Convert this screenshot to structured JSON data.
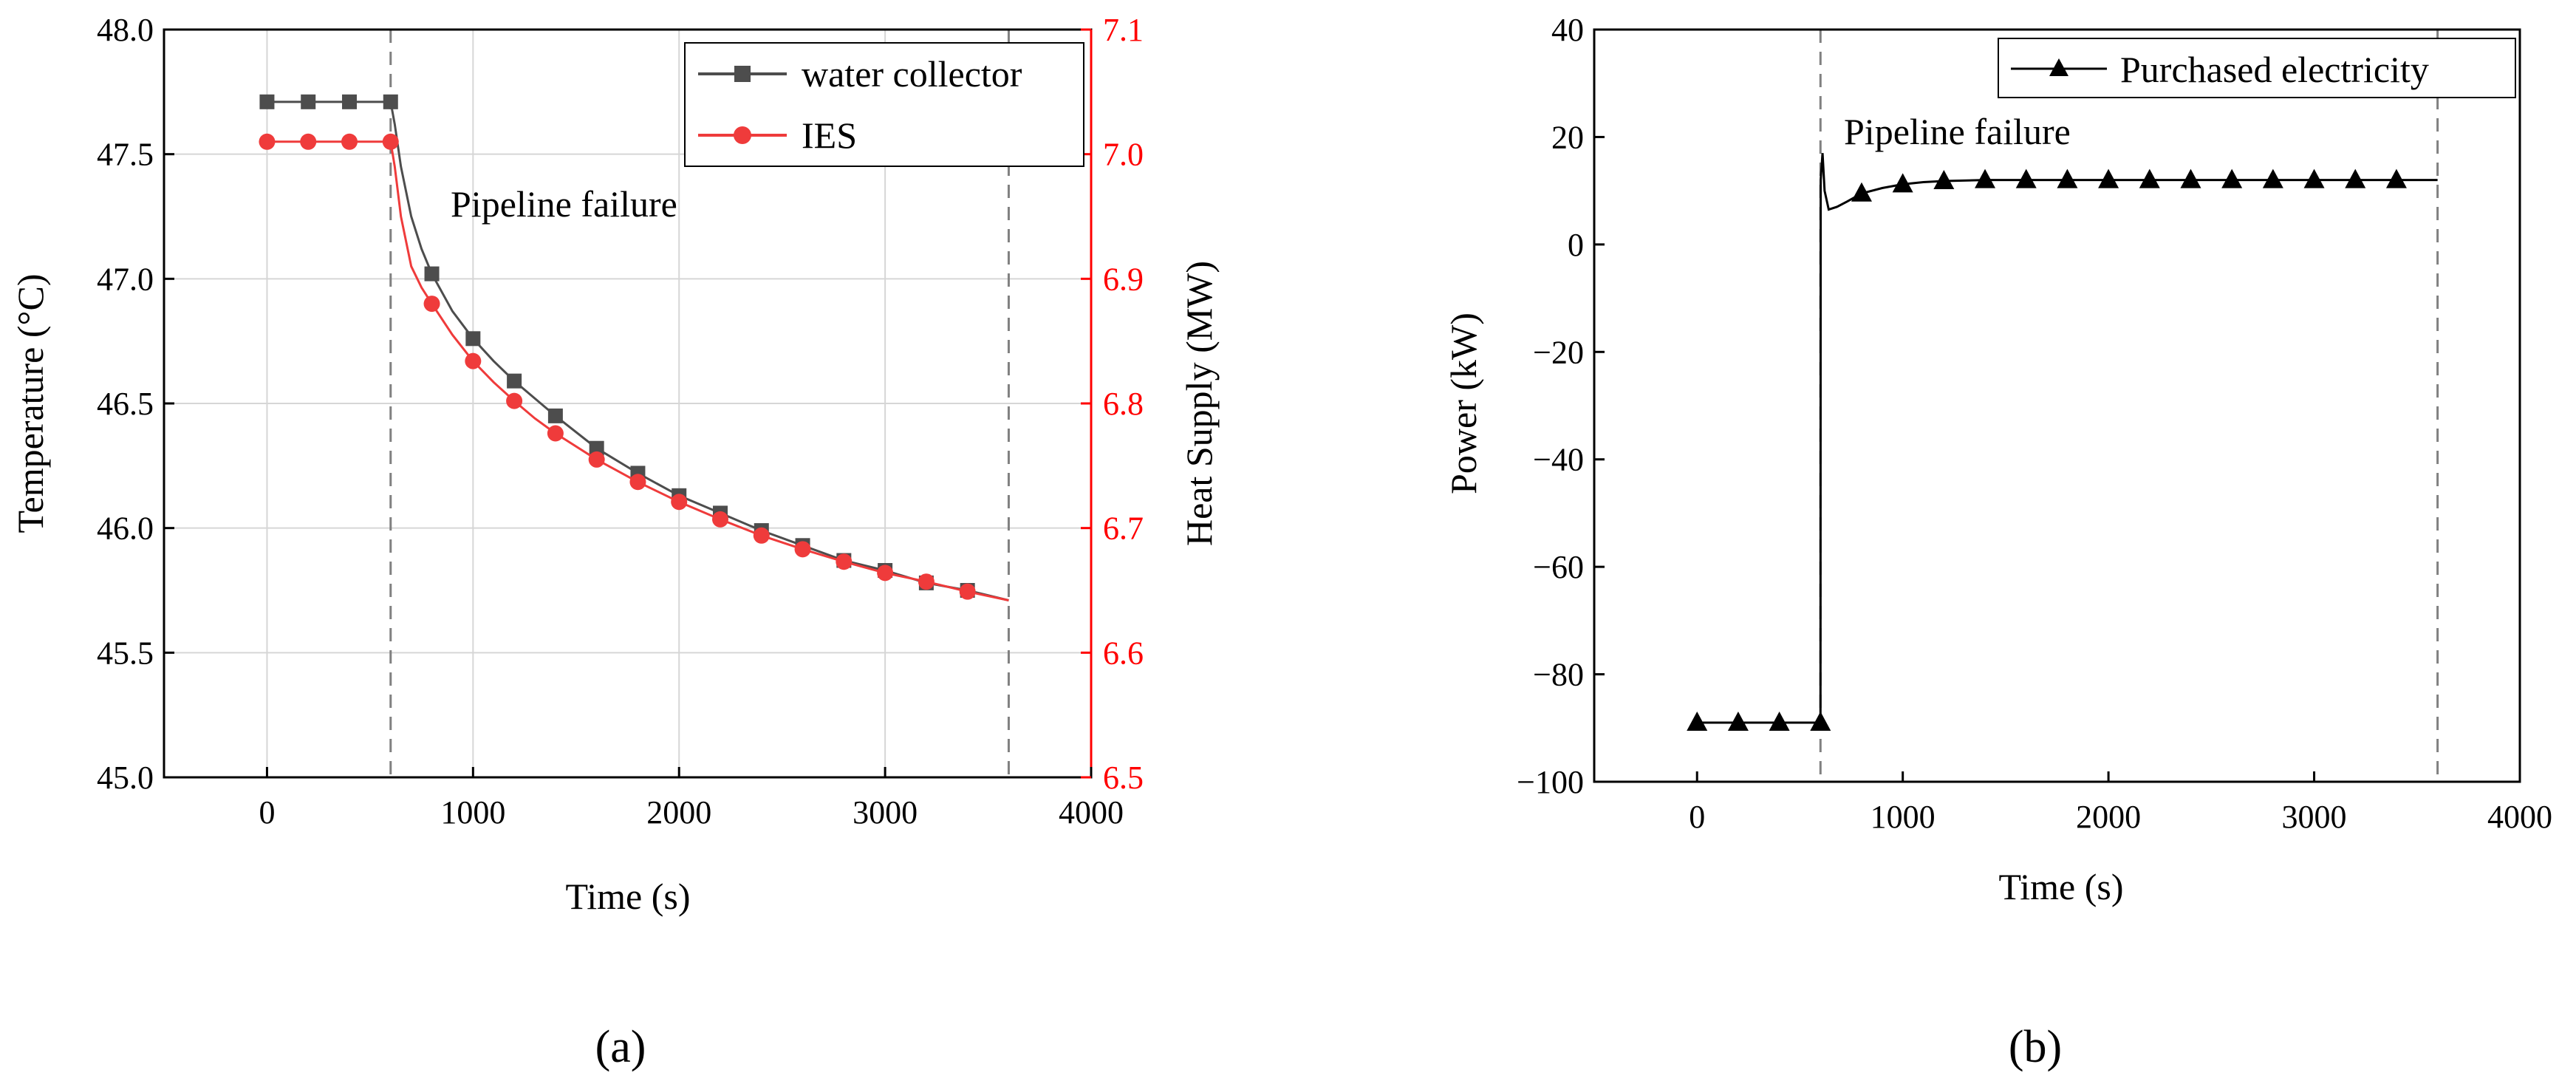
{
  "colors": {
    "black": "#000000",
    "red": "#ff0000",
    "grid": "#d6d6d6",
    "dash": "#808080",
    "series_gray": "#4d4d4d",
    "series_red": "#ef3b3b"
  },
  "chart_data": [
    {
      "type": "line",
      "panel_label": "(a)",
      "title": "",
      "xlabel": "Time (s)",
      "ylabel": "Temperature (°C)",
      "y2label": "Heat Supply (MW)",
      "xlim": [
        -500,
        4000
      ],
      "ylim": [
        45.0,
        48.0
      ],
      "y2lim": [
        6.5,
        7.1
      ],
      "x_ticks": [
        0,
        1000,
        2000,
        3000,
        4000
      ],
      "y_ticks": [
        45.0,
        45.5,
        46.0,
        46.5,
        47.0,
        47.5,
        48.0
      ],
      "y2_ticks": [
        6.5,
        6.6,
        6.7,
        6.8,
        6.9,
        7.0,
        7.1
      ],
      "x_tick_labels": [
        "0",
        "1000",
        "2000",
        "3000",
        "4000"
      ],
      "y_tick_labels": [
        "45.0",
        "45.5",
        "46.0",
        "46.5",
        "47.0",
        "47.5",
        "48.0"
      ],
      "y2_tick_labels": [
        "6.5",
        "6.6",
        "6.7",
        "6.8",
        "6.9",
        "7.0",
        "7.1"
      ],
      "grid": true,
      "vlines": [
        600,
        3600
      ],
      "annotation": {
        "text": "Pipeline failure",
        "x": 900,
        "y": 47.3
      },
      "legend_position": "top-right",
      "series": [
        {
          "name": "water collector",
          "axis": "left",
          "marker": "square",
          "x": [
            0,
            200,
            400,
            600,
            800,
            1000,
            1200,
            1400,
            1600,
            1800,
            2000,
            2200,
            2400,
            2600,
            2800,
            3000,
            3200,
            3400
          ],
          "values": [
            47.71,
            47.71,
            47.71,
            47.71,
            47.02,
            46.76,
            46.59,
            46.45,
            46.32,
            46.22,
            46.13,
            46.06,
            45.99,
            45.93,
            45.87,
            45.83,
            45.78,
            45.75
          ],
          "line_x": [
            0,
            600,
            620,
            650,
            700,
            750,
            800,
            900,
            1000,
            1100,
            1200,
            1300,
            1400,
            1600,
            1800,
            2000,
            2200,
            2400,
            2600,
            2800,
            3000,
            3200,
            3400,
            3600
          ],
          "line_values": [
            47.71,
            47.71,
            47.62,
            47.45,
            47.25,
            47.12,
            47.02,
            46.87,
            46.76,
            46.67,
            46.59,
            46.52,
            46.45,
            46.32,
            46.22,
            46.13,
            46.06,
            45.99,
            45.93,
            45.87,
            45.83,
            45.78,
            45.75,
            45.71
          ]
        },
        {
          "name": "IES",
          "axis": "right",
          "marker": "circle",
          "x": [
            0,
            200,
            400,
            600,
            800,
            1000,
            1200,
            1400,
            1600,
            1800,
            2000,
            2200,
            2400,
            2600,
            2800,
            3000,
            3200,
            3400
          ],
          "values": [
            7.01,
            7.01,
            7.01,
            7.01,
            6.88,
            6.834,
            6.802,
            6.776,
            6.755,
            6.737,
            6.721,
            6.707,
            6.694,
            6.683,
            6.673,
            6.664,
            6.657,
            6.649
          ],
          "line_x": [
            0,
            600,
            620,
            650,
            700,
            750,
            800,
            900,
            1000,
            1100,
            1200,
            1300,
            1400,
            1600,
            1800,
            2000,
            2200,
            2400,
            2600,
            2800,
            3000,
            3200,
            3400,
            3600
          ],
          "line_values": [
            7.01,
            7.01,
            6.99,
            6.95,
            6.91,
            6.893,
            6.88,
            6.855,
            6.834,
            6.817,
            6.802,
            6.788,
            6.776,
            6.755,
            6.737,
            6.721,
            6.707,
            6.694,
            6.683,
            6.673,
            6.664,
            6.657,
            6.649,
            6.642
          ]
        }
      ]
    },
    {
      "type": "line",
      "panel_label": "(b)",
      "title": "",
      "xlabel": "Time (s)",
      "ylabel": "Power (kW)",
      "xlim": [
        -500,
        4000
      ],
      "ylim": [
        -100,
        40
      ],
      "x_ticks": [
        0,
        1000,
        2000,
        3000,
        4000
      ],
      "y_ticks": [
        -100,
        -80,
        -60,
        -40,
        -20,
        0,
        20,
        40
      ],
      "x_tick_labels": [
        "0",
        "1000",
        "2000",
        "3000",
        "4000"
      ],
      "y_tick_labels": [
        "−100",
        "−80",
        "−60",
        "−40",
        "−20",
        "0",
        "20",
        "40"
      ],
      "grid": false,
      "vlines": [
        600,
        3600
      ],
      "annotation": {
        "text": "Pipeline failure",
        "x": 1300,
        "y": 20
      },
      "legend_position": "top-right",
      "series": [
        {
          "name": "Purchased electricity",
          "axis": "left",
          "marker": "triangle",
          "x": [
            0,
            200,
            400,
            600,
            800,
            1000,
            1200,
            1400,
            1600,
            1800,
            2000,
            2200,
            2400,
            2600,
            2800,
            3000,
            3200,
            3400
          ],
          "values": [
            -89,
            -89,
            -89,
            -89,
            9.5,
            11.2,
            11.8,
            12,
            12,
            12,
            12,
            12,
            12,
            12,
            12,
            12,
            12,
            12
          ],
          "line_x": [
            0,
            600,
            601,
            610,
            620,
            640,
            680,
            730,
            800,
            900,
            1000,
            1100,
            1200,
            1400,
            1600,
            2000,
            3000,
            3600
          ],
          "line_values": [
            -89,
            -89,
            12,
            17,
            10,
            6.5,
            7,
            8,
            9.5,
            10.5,
            11.2,
            11.6,
            11.8,
            12,
            12,
            12,
            12,
            12
          ]
        }
      ]
    }
  ]
}
